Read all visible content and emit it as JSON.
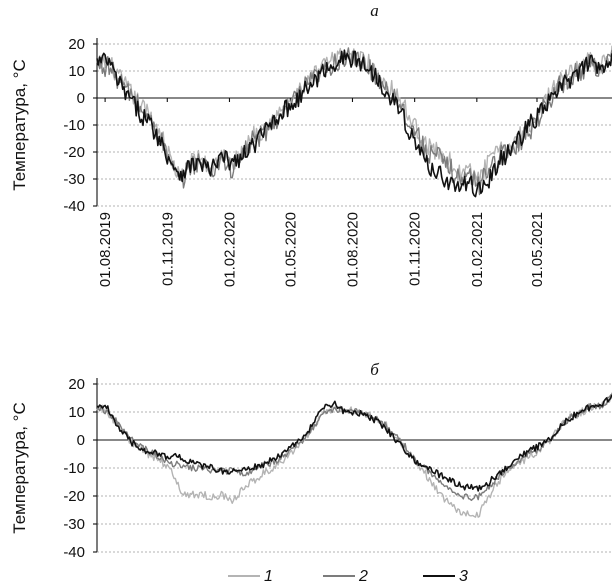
{
  "chart_data": [
    {
      "type": "line",
      "title": "а",
      "ylabel": "Температура, °C",
      "ylim": [
        -40,
        20
      ],
      "yticks": [
        20,
        10,
        0,
        -10,
        -20,
        -30,
        -40
      ],
      "xlim": [
        "2019-07-20",
        "2021-08-20"
      ],
      "xtick_labels": [
        "01.08.2019",
        "01.11.2019",
        "01.02.2020",
        "01.05.2020",
        "01.08.2020",
        "01.11.2020",
        "01.02.2021",
        "01.05.2021"
      ],
      "xticks": [
        "2019-08-01",
        "2019-11-01",
        "2020-02-01",
        "2020-05-01",
        "2020-08-01",
        "2020-11-01",
        "2021-02-01",
        "2021-05-01"
      ],
      "grid": true,
      "series": [
        {
          "name": "1",
          "color": "#b4b4b4",
          "noise": 3.5,
          "x": [
            "2019-07-20",
            "2019-08-05",
            "2019-08-20",
            "2019-09-05",
            "2019-09-20",
            "2019-10-05",
            "2019-10-20",
            "2019-11-05",
            "2019-11-20",
            "2019-12-05",
            "2019-12-20",
            "2020-01-05",
            "2020-01-20",
            "2020-02-05",
            "2020-02-20",
            "2020-03-05",
            "2020-03-20",
            "2020-04-05",
            "2020-04-20",
            "2020-05-05",
            "2020-05-20",
            "2020-06-05",
            "2020-06-20",
            "2020-07-05",
            "2020-07-20",
            "2020-08-05",
            "2020-08-20",
            "2020-09-05",
            "2020-09-20",
            "2020-10-05",
            "2020-10-20",
            "2020-11-05",
            "2020-11-20",
            "2020-12-05",
            "2020-12-20",
            "2021-01-05",
            "2021-01-20",
            "2021-02-05",
            "2021-02-20",
            "2021-03-05",
            "2021-03-20",
            "2021-04-05",
            "2021-04-20",
            "2021-05-05",
            "2021-05-20",
            "2021-06-05",
            "2021-06-20",
            "2021-07-05",
            "2021-07-20",
            "2021-08-05",
            "2021-08-20"
          ],
          "values": [
            12,
            14,
            8,
            3,
            -2,
            -6,
            -12,
            -22,
            -30,
            -24,
            -22,
            -27,
            -20,
            -25,
            -20,
            -14,
            -12,
            -8,
            -5,
            0,
            4,
            8,
            12,
            14,
            16,
            15,
            14,
            10,
            5,
            2,
            -5,
            -12,
            -18,
            -20,
            -23,
            -28,
            -27,
            -30,
            -23,
            -20,
            -19,
            -14,
            -10,
            -5,
            2,
            6,
            9,
            11,
            15,
            12,
            16
          ]
        },
        {
          "name": "2",
          "color": "#7c7c7c",
          "noise": 4.0,
          "x": [
            "2019-07-20",
            "2019-08-05",
            "2019-08-20",
            "2019-09-05",
            "2019-09-20",
            "2019-10-05",
            "2019-10-20",
            "2019-11-05",
            "2019-11-20",
            "2019-12-05",
            "2019-12-20",
            "2020-01-05",
            "2020-01-20",
            "2020-02-05",
            "2020-02-20",
            "2020-03-05",
            "2020-03-20",
            "2020-04-05",
            "2020-04-20",
            "2020-05-05",
            "2020-05-20",
            "2020-06-05",
            "2020-06-20",
            "2020-07-05",
            "2020-07-20",
            "2020-08-05",
            "2020-08-20",
            "2020-09-05",
            "2020-09-20",
            "2020-10-05",
            "2020-10-20",
            "2020-11-05",
            "2020-11-20",
            "2020-12-05",
            "2020-12-20",
            "2021-01-05",
            "2021-01-20",
            "2021-02-05",
            "2021-02-20",
            "2021-03-05",
            "2021-03-20",
            "2021-04-05",
            "2021-04-20",
            "2021-05-05",
            "2021-05-20",
            "2021-06-05",
            "2021-06-20",
            "2021-07-05",
            "2021-07-20",
            "2021-08-05",
            "2021-08-20"
          ],
          "values": [
            12,
            12,
            7,
            2,
            -3,
            -8,
            -14,
            -24,
            -32,
            -25,
            -23,
            -28,
            -22,
            -27,
            -21,
            -16,
            -14,
            -9,
            -6,
            -2,
            3,
            7,
            10,
            13,
            15,
            14,
            13,
            8,
            4,
            0,
            -7,
            -14,
            -20,
            -22,
            -25,
            -30,
            -29,
            -32,
            -25,
            -22,
            -20,
            -16,
            -12,
            -6,
            0,
            5,
            8,
            10,
            13,
            11,
            15
          ]
        },
        {
          "name": "3",
          "color": "#111111",
          "noise": 3.5,
          "x": [
            "2019-07-20",
            "2019-08-05",
            "2019-08-20",
            "2019-09-05",
            "2019-09-20",
            "2019-10-05",
            "2019-10-20",
            "2019-11-05",
            "2019-11-20",
            "2019-12-05",
            "2019-12-20",
            "2020-01-05",
            "2020-01-20",
            "2020-02-05",
            "2020-02-20",
            "2020-03-05",
            "2020-03-20",
            "2020-04-05",
            "2020-04-20",
            "2020-05-05",
            "2020-05-20",
            "2020-06-05",
            "2020-06-20",
            "2020-07-05",
            "2020-07-20",
            "2020-08-05",
            "2020-08-20",
            "2020-09-05",
            "2020-09-20",
            "2020-10-05",
            "2020-10-20",
            "2020-11-05",
            "2020-11-20",
            "2020-12-05",
            "2020-12-20",
            "2021-01-05",
            "2021-01-20",
            "2021-02-05",
            "2021-02-20",
            "2021-03-05",
            "2021-03-20",
            "2021-04-05",
            "2021-04-20",
            "2021-05-05",
            "2021-05-20",
            "2021-06-05",
            "2021-06-20",
            "2021-07-05",
            "2021-07-20",
            "2021-08-05",
            "2021-08-20"
          ],
          "values": [
            13,
            14,
            6,
            0,
            -5,
            -9,
            -15,
            -23,
            -28,
            -25,
            -24,
            -27,
            -22,
            -24,
            -22,
            -18,
            -14,
            -8,
            -5,
            -2,
            2,
            6,
            10,
            13,
            15,
            14,
            12,
            8,
            3,
            -2,
            -10,
            -18,
            -25,
            -27,
            -31,
            -33,
            -32,
            -34,
            -30,
            -24,
            -20,
            -15,
            -10,
            -6,
            -1,
            4,
            7,
            10,
            13,
            12,
            15
          ]
        }
      ]
    },
    {
      "type": "line",
      "title": "б",
      "ylabel": "Температура, °C",
      "ylim": [
        -40,
        20
      ],
      "yticks": [
        20,
        10,
        0,
        -10,
        -20,
        -30,
        -40
      ],
      "xlim": [
        "2019-07-20",
        "2021-08-20"
      ],
      "grid": true,
      "series": [
        {
          "name": "1",
          "color": "#b4b4b4",
          "noise": 1.5,
          "x": [
            "2019-07-20",
            "2019-08-05",
            "2019-08-20",
            "2019-09-05",
            "2019-09-20",
            "2019-10-05",
            "2019-10-20",
            "2019-11-05",
            "2019-11-20",
            "2019-12-05",
            "2019-12-20",
            "2020-01-05",
            "2020-01-20",
            "2020-02-05",
            "2020-02-20",
            "2020-03-05",
            "2020-03-20",
            "2020-04-05",
            "2020-04-20",
            "2020-05-05",
            "2020-05-20",
            "2020-06-05",
            "2020-06-20",
            "2020-07-05",
            "2020-07-20",
            "2020-08-05",
            "2020-08-20",
            "2020-09-05",
            "2020-09-20",
            "2020-10-05",
            "2020-10-20",
            "2020-11-05",
            "2020-11-20",
            "2020-12-05",
            "2020-12-20",
            "2021-01-05",
            "2021-01-20",
            "2021-02-05",
            "2021-02-20",
            "2021-03-05",
            "2021-03-20",
            "2021-04-05",
            "2021-04-20",
            "2021-05-05",
            "2021-05-20",
            "2021-06-05",
            "2021-06-20",
            "2021-07-05",
            "2021-07-20",
            "2021-08-05",
            "2021-08-20"
          ],
          "values": [
            12,
            10,
            5,
            0,
            -3,
            -5,
            -7,
            -10,
            -18,
            -20,
            -19,
            -21,
            -19,
            -22,
            -18,
            -15,
            -12,
            -10,
            -7,
            -4,
            0,
            5,
            10,
            11,
            11,
            10,
            9,
            8,
            5,
            1,
            -4,
            -9,
            -13,
            -18,
            -22,
            -25,
            -27,
            -26,
            -20,
            -15,
            -11,
            -8,
            -6,
            -4,
            0,
            5,
            8,
            10,
            12,
            12,
            16
          ]
        },
        {
          "name": "2",
          "color": "#7c7c7c",
          "noise": 1.2,
          "x": [
            "2019-07-20",
            "2019-08-05",
            "2019-08-20",
            "2019-09-05",
            "2019-09-20",
            "2019-10-05",
            "2019-10-20",
            "2019-11-05",
            "2019-11-20",
            "2019-12-05",
            "2019-12-20",
            "2020-01-05",
            "2020-01-20",
            "2020-02-05",
            "2020-02-20",
            "2020-03-05",
            "2020-03-20",
            "2020-04-05",
            "2020-04-20",
            "2020-05-05",
            "2020-05-20",
            "2020-06-05",
            "2020-06-20",
            "2020-07-05",
            "2020-07-20",
            "2020-08-05",
            "2020-08-20",
            "2020-09-05",
            "2020-09-20",
            "2020-10-05",
            "2020-10-20",
            "2020-11-05",
            "2020-11-20",
            "2020-12-05",
            "2020-12-20",
            "2021-01-05",
            "2021-01-20",
            "2021-02-05",
            "2021-02-20",
            "2021-03-05",
            "2021-03-20",
            "2021-04-05",
            "2021-04-20",
            "2021-05-05",
            "2021-05-20",
            "2021-06-05",
            "2021-06-20",
            "2021-07-05",
            "2021-07-20",
            "2021-08-05",
            "2021-08-20"
          ],
          "values": [
            12,
            10,
            6,
            1,
            -2,
            -4,
            -6,
            -8,
            -9,
            -10,
            -10,
            -11,
            -11,
            -11,
            -12,
            -11,
            -9,
            -8,
            -6,
            -3,
            0,
            5,
            10,
            11,
            11,
            10,
            10,
            8,
            5,
            1,
            -3,
            -8,
            -11,
            -14,
            -17,
            -19,
            -21,
            -20,
            -17,
            -13,
            -10,
            -7,
            -5,
            -3,
            0,
            5,
            8,
            10,
            12,
            12,
            16
          ]
        },
        {
          "name": "3",
          "color": "#111111",
          "noise": 1.2,
          "x": [
            "2019-07-20",
            "2019-08-05",
            "2019-08-20",
            "2019-09-05",
            "2019-09-20",
            "2019-10-05",
            "2019-10-20",
            "2019-11-05",
            "2019-11-20",
            "2019-12-05",
            "2019-12-20",
            "2020-01-05",
            "2020-01-20",
            "2020-02-05",
            "2020-02-20",
            "2020-03-05",
            "2020-03-20",
            "2020-04-05",
            "2020-04-20",
            "2020-05-05",
            "2020-05-20",
            "2020-06-05",
            "2020-06-20",
            "2020-07-05",
            "2020-07-20",
            "2020-08-05",
            "2020-08-20",
            "2020-09-05",
            "2020-09-20",
            "2020-10-05",
            "2020-10-20",
            "2020-11-05",
            "2020-11-20",
            "2020-12-05",
            "2020-12-20",
            "2021-01-05",
            "2021-01-20",
            "2021-02-05",
            "2021-02-20",
            "2021-03-05",
            "2021-03-20",
            "2021-04-05",
            "2021-04-20",
            "2021-05-05",
            "2021-05-20",
            "2021-06-05",
            "2021-06-20",
            "2021-07-05",
            "2021-07-20",
            "2021-08-05",
            "2021-08-20"
          ],
          "values": [
            13,
            11,
            5,
            0,
            -3,
            -4,
            -5,
            -6,
            -6,
            -8,
            -9,
            -10,
            -11,
            -11,
            -11,
            -10,
            -9,
            -7,
            -5,
            -2,
            1,
            6,
            12,
            13,
            10,
            10,
            9,
            7,
            4,
            0,
            -4,
            -8,
            -10,
            -12,
            -14,
            -16,
            -17,
            -17,
            -15,
            -12,
            -9,
            -6,
            -4,
            -2,
            0,
            5,
            8,
            10,
            12,
            12,
            16
          ]
        }
      ]
    }
  ],
  "legend": [
    {
      "label": "1",
      "color": "#b4b4b4"
    },
    {
      "label": "2",
      "color": "#7c7c7c"
    },
    {
      "label": "3",
      "color": "#111111"
    }
  ]
}
